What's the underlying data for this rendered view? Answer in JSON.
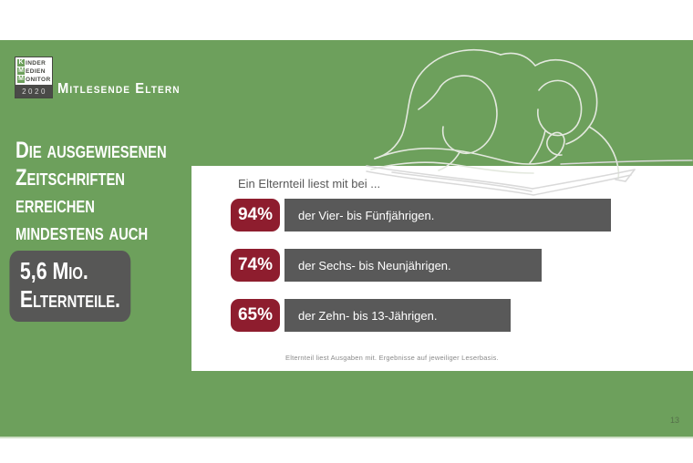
{
  "slide": {
    "page_number": "13",
    "colors": {
      "background_green": "#6DA05C",
      "bar_gray": "#595959",
      "headline_box_gray": "#575756",
      "value_box_red": "#8E1D2E"
    }
  },
  "logo": {
    "lines": [
      {
        "initial": "K",
        "rest": "INDER"
      },
      {
        "initial": "M",
        "rest": "EDIEN"
      },
      {
        "initial": "M",
        "rest": "ONITOR"
      }
    ],
    "year": "2020"
  },
  "header": {
    "title": "Mitlesende Eltern"
  },
  "headline": {
    "lines": [
      "Die ausgewiesenen",
      "Zeitschriften",
      "erreichen",
      "mindestens auch"
    ],
    "boxed_lines": [
      "5,6 Mio.",
      "Elternteile."
    ]
  },
  "chart_data": {
    "type": "bar",
    "title": "Ein Elternteil liest mit bei ...",
    "categories": [
      "der Vier- bis Fünfjährigen.",
      "der Sechs- bis Neunjährigen.",
      "der Zehn- bis 13-Jährigen."
    ],
    "values": [
      94,
      74,
      65
    ],
    "value_labels": [
      "94%",
      "74%",
      "65%"
    ],
    "unit": "%",
    "xlim": [
      0,
      100
    ],
    "legend": "none",
    "grid": false,
    "bar_color": "#595959",
    "value_box_color": "#8E1D2E",
    "footnote": "Elternteil liest Ausgaben mit. Ergebnisse auf jeweiliger Leserbasis."
  },
  "icons": {
    "illustration": "parent-and-child-reading-line-art"
  }
}
